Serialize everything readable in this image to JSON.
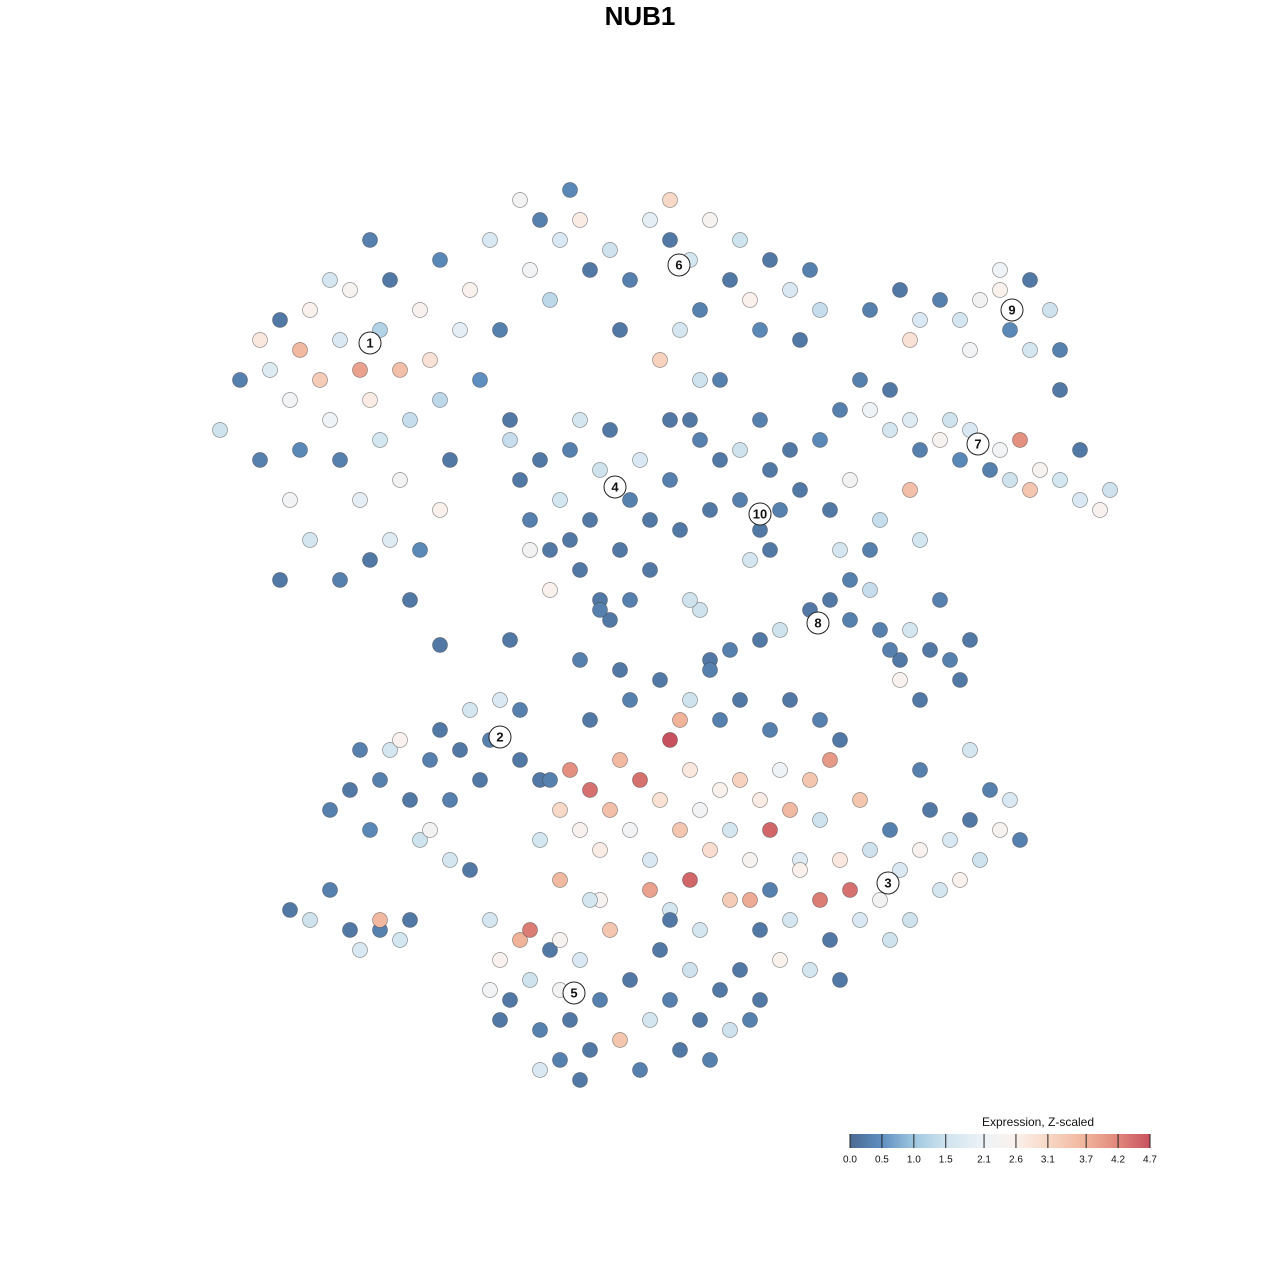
{
  "chart_data": {
    "type": "scatter",
    "title": "NUB1",
    "xlim": [
      -45,
      50
    ],
    "ylim": [
      -45,
      47
    ],
    "x": [
      -42,
      -40,
      -38,
      -37,
      -36,
      -35,
      -34,
      -34,
      -33,
      -32,
      -31,
      -30,
      -30,
      -29,
      -28,
      -28,
      -27,
      -26,
      -26,
      -25,
      -24,
      -24,
      -23,
      -22,
      -21,
      -20,
      -20,
      -19,
      -18,
      -17,
      -16,
      -15,
      -14,
      -13,
      -33,
      -30,
      -27,
      -25,
      -22,
      -35,
      -38,
      -31,
      -27,
      -20,
      -36,
      -23,
      -12,
      -10,
      -8,
      -6,
      -5,
      -3,
      -1,
      1,
      3,
      3,
      5,
      6,
      7,
      9,
      10,
      11,
      12,
      13,
      15,
      16,
      17,
      18,
      -9,
      -2,
      2,
      4,
      8,
      -11,
      -7,
      6,
      5,
      23,
      26,
      28,
      30,
      32,
      34,
      36,
      37,
      39,
      41,
      42,
      39,
      27,
      33,
      42,
      36,
      22,
      23,
      25,
      25,
      27,
      28,
      30,
      31,
      32,
      33,
      35,
      36,
      37,
      38,
      39,
      40,
      42,
      44,
      46,
      47,
      44,
      20,
      21,
      24,
      27,
      28,
      23,
      -12,
      -11,
      -10,
      -9,
      -8,
      -7,
      -6,
      -5,
      -4,
      -3,
      -2,
      -1,
      0,
      1,
      1,
      3,
      3,
      -9,
      -4,
      -1,
      -6,
      4,
      -13,
      -11,
      -7,
      6,
      8,
      10,
      12,
      13,
      15,
      10,
      12,
      14,
      11,
      13,
      16,
      18,
      7,
      19,
      20,
      21,
      19,
      21,
      17,
      14,
      12,
      9,
      7,
      23,
      24,
      26,
      27,
      29,
      31,
      32,
      30,
      26,
      28,
      25,
      33,
      6,
      -20,
      -13,
      -6,
      -3,
      5,
      -4,
      -31,
      -29,
      -27,
      -26,
      -25,
      -23,
      -22,
      -21,
      -20,
      -19,
      -18,
      -17,
      -16,
      -15,
      -14,
      -12,
      -12,
      -10,
      -24,
      -21,
      -19,
      -17,
      -28,
      -35,
      -33,
      -31,
      -29,
      -28,
      -26,
      -24,
      -26,
      -23,
      -9,
      -8,
      -7,
      -6,
      -5,
      -4,
      -3,
      -2,
      -1,
      0,
      1,
      2,
      3,
      4,
      5,
      5,
      6,
      7,
      8,
      9,
      10,
      11,
      12,
      13,
      14,
      15,
      16,
      17,
      18,
      19,
      -5,
      -1,
      2,
      5,
      8,
      10,
      13,
      15,
      18,
      20,
      4,
      -8,
      -10,
      1,
      9,
      -4,
      3,
      -2,
      7,
      13,
      15,
      16,
      18,
      19,
      20,
      21,
      22,
      23,
      24,
      25,
      26,
      27,
      28,
      29,
      30,
      31,
      32,
      33,
      34,
      35,
      36,
      37,
      38,
      14,
      17,
      12,
      25,
      20,
      11,
      33,
      28,
      22,
      -15,
      -14,
      -13,
      -12,
      -11,
      -10,
      -9,
      -8,
      -8,
      -7,
      -6,
      -5,
      -4,
      -3,
      -2,
      -1,
      0,
      1,
      2,
      3,
      4,
      5,
      6,
      7,
      8,
      9,
      10,
      11,
      12,
      -11,
      -8,
      -5,
      -14,
      -10,
      -6,
      3,
      6,
      -15
    ],
    "y": [
      21,
      26,
      30,
      27,
      32,
      24,
      19,
      29,
      33,
      26,
      22,
      30,
      18,
      35,
      27,
      14,
      24,
      31,
      20,
      36,
      27,
      16,
      22,
      33,
      28,
      24,
      38,
      18,
      31,
      35,
      26,
      40,
      31,
      22,
      10,
      6,
      8,
      10,
      9,
      14,
      18,
      36,
      40,
      13,
      6,
      4,
      44,
      42,
      40,
      42,
      37,
      39,
      36,
      42,
      40,
      44,
      38,
      33,
      42,
      36,
      40,
      34,
      31,
      38,
      35,
      30,
      37,
      33,
      34,
      31,
      28,
      31,
      26,
      37,
      45,
      26,
      22,
      33,
      35,
      32,
      34,
      32,
      34,
      35,
      31,
      36,
      33,
      29,
      29,
      30,
      29,
      25,
      37,
      26,
      23,
      21,
      25,
      22,
      19,
      20,
      22,
      18,
      21,
      17,
      19,
      16,
      20,
      15,
      17,
      16,
      14,
      13,
      15,
      19,
      23,
      16,
      12,
      15,
      10,
      9,
      16,
      12,
      18,
      9,
      14,
      19,
      7,
      12,
      17,
      21,
      9,
      14,
      18,
      7,
      12,
      16,
      22,
      5,
      4,
      4,
      22,
      11,
      20,
      9,
      10,
      20,
      18,
      19,
      22,
      17,
      19,
      14,
      11,
      13,
      8,
      9,
      15,
      20,
      13,
      13,
      9,
      6,
      4,
      2,
      3,
      1,
      0,
      -1,
      -2,
      5,
      1,
      -2,
      1,
      -1,
      -2,
      -4,
      4,
      -4,
      -6,
      -1,
      0,
      3,
      -0.5,
      0,
      -2,
      2,
      4,
      3,
      -17,
      -15,
      -19,
      -14,
      -11,
      -16,
      -20,
      -12,
      -9,
      -16,
      -11,
      -7,
      -14,
      -10,
      -6,
      -12,
      -7,
      -14,
      -10,
      -19,
      -22,
      -23,
      -11,
      -27,
      -28,
      -25,
      -29,
      -31,
      -29,
      -30,
      -28,
      -28,
      -14,
      -17,
      -13,
      -19,
      -15,
      -21,
      -17,
      -12,
      -19,
      -14,
      -22,
      -16,
      -10,
      -19,
      -13,
      -24,
      -17,
      -21,
      -15,
      -19,
      -14,
      -22,
      -16,
      -19,
      -13,
      -17,
      -22,
      -14,
      -18,
      -12,
      -8,
      -6,
      -4,
      -6,
      -8,
      -6,
      -9,
      -6,
      -8,
      -10,
      -8,
      -24,
      -20,
      -25,
      -26,
      -26,
      -27,
      -3,
      -3,
      -25,
      -28,
      -23,
      -26,
      -30,
      -22,
      -25,
      -28,
      -21,
      -26,
      -19,
      -23,
      -28,
      -21,
      -17,
      -25,
      -20,
      -24,
      -18,
      -22,
      -15,
      -19,
      -16,
      -20,
      -32,
      -33,
      -29,
      -30,
      -34,
      -26,
      -11,
      -13,
      -16,
      -28,
      -32,
      -36,
      -30,
      -34,
      -39,
      -31,
      -35,
      -42,
      -38,
      -32,
      -41,
      -36,
      -29,
      -40,
      -34,
      -43,
      -38,
      -31,
      -36,
      -41,
      -33,
      -38,
      -42,
      -35,
      -39,
      -33,
      -38,
      -36,
      -29,
      -30,
      -26,
      -38,
      -43,
      -44,
      -28,
      -29,
      -35
    ],
    "values": [
      1.5,
      0.3,
      2.8,
      1.8,
      0.2,
      2.2,
      0.4,
      3.6,
      2.6,
      3.3,
      2.1,
      1.7,
      0.3,
      2.4,
      3.9,
      1.9,
      2.7,
      1.2,
      1.6,
      0.2,
      3.5,
      2.3,
      1.4,
      2.5,
      2.9,
      1.3,
      0.4,
      0.2,
      1.9,
      2.6,
      0.5,
      1.7,
      0.3,
      0.2,
      1.6,
      0.3,
      0.2,
      1.8,
      0.4,
      2.2,
      0.3,
      1.6,
      0.3,
      2.6,
      0.2,
      0.2,
      2.3,
      0.3,
      1.7,
      2.7,
      0.2,
      1.5,
      0.3,
      1.9,
      0.2,
      3.1,
      1.6,
      0.3,
      2.4,
      0.2,
      1.5,
      2.6,
      0.4,
      0.2,
      1.7,
      0.2,
      0.3,
      1.4,
      1.3,
      0.2,
      3.2,
      1.6,
      0.3,
      2.2,
      0.4,
      1.5,
      0.2,
      0.3,
      0.2,
      1.7,
      0.3,
      1.6,
      2.3,
      2.6,
      0.4,
      0.2,
      1.5,
      0.3,
      1.6,
      2.9,
      2.2,
      0.2,
      2.1,
      0.3,
      2.1,
      1.6,
      0.2,
      1.8,
      0.3,
      2.4,
      1.5,
      0.4,
      1.7,
      0.3,
      2.2,
      1.5,
      4.1,
      3.4,
      2.4,
      1.6,
      1.7,
      2.5,
      1.5,
      0.2,
      0.3,
      2.3,
      1.4,
      3.5,
      1.6,
      0.3,
      0.2,
      0.3,
      0.2,
      0.2,
      1.6,
      0.3,
      0.2,
      0.2,
      1.5,
      0.2,
      0.2,
      0.3,
      1.7,
      0.2,
      0.2,
      0.3,
      0.2,
      2.6,
      0.2,
      0.3,
      1.6,
      0.2,
      1.4,
      2.3,
      0.2,
      0.3,
      0.2,
      1.5,
      0.3,
      0.2,
      0.2,
      0.3,
      0.2,
      0.3,
      1.6,
      0.2,
      0.2,
      0.4,
      0.2,
      0.2,
      1.6,
      0.3,
      0.2,
      0.3,
      0.2,
      1.5,
      0.2,
      0.3,
      0.2,
      1.4,
      0.3,
      0.2,
      1.6,
      0.2,
      0.3,
      0.2,
      0.3,
      2.5,
      0.2,
      0.3,
      0.2,
      1.5,
      0.2,
      0.2,
      0.3,
      0.2,
      1.5,
      0.3,
      0.3,
      0.2,
      0.4,
      0.3,
      1.6,
      0.2,
      1.5,
      0.3,
      0.2,
      0.3,
      0.2,
      1.6,
      0.2,
      0.3,
      1.7,
      0.2,
      0.3,
      0.2,
      2.5,
      2.3,
      1.6,
      0.2,
      0.3,
      0.2,
      1.5,
      0.3,
      0.2,
      1.7,
      0.3,
      1.6,
      3.6,
      0.2,
      0.3,
      3.1,
      4.1,
      2.5,
      4.4,
      2.7,
      3.5,
      3.6,
      2.2,
      4.4,
      1.7,
      2.9,
      4.7,
      3.4,
      2.8,
      4.5,
      2.2,
      3.0,
      2.6,
      1.6,
      3.2,
      2.4,
      2.7,
      4.5,
      2.1,
      3.6,
      1.8,
      3.4,
      1.5,
      4.0,
      0.2,
      0.3,
      0.2,
      1.5,
      0.3,
      0.2,
      0.3,
      0.2,
      0.3,
      0.2,
      3.7,
      3.6,
      1.6,
      3.9,
      3.3,
      2.4,
      1.6,
      0.2,
      0.3,
      0.3,
      1.6,
      2.6,
      4.3,
      0.2,
      2.8,
      4.4,
      1.7,
      1.5,
      2.3,
      0.3,
      1.7,
      1.5,
      2.5,
      0.2,
      1.6,
      1.7,
      2.6,
      0.2,
      1.5,
      0.3,
      2.4,
      1.7,
      0.3,
      2.6,
      1.6,
      0.2,
      1.5,
      0.2,
      3.8,
      1.6,
      0.3,
      3.4,
      1.6,
      2.5,
      0.2,
      3.7,
      1.5,
      0.3,
      0.2,
      2.3,
      0.3,
      0.2,
      1.7,
      0.2,
      0.3,
      3.4,
      3.4,
      0.2,
      0.3,
      1.6,
      0.2,
      0.3,
      0.2,
      1.5,
      0.2,
      0.3,
      0.2,
      1.5,
      0.2,
      0.3,
      0.2,
      4.3,
      2.4,
      1.6,
      0.2,
      1.7,
      0.2,
      0.2,
      1.6,
      2.2
    ],
    "clusters": [
      {
        "label": "1",
        "x": -27,
        "y": 29.7
      },
      {
        "label": "2",
        "x": -14,
        "y": -9.7
      },
      {
        "label": "3",
        "x": 24.8,
        "y": -24.3
      },
      {
        "label": "4",
        "x": -2.5,
        "y": 15.3
      },
      {
        "label": "5",
        "x": -6.6,
        "y": -35.3
      },
      {
        "label": "6",
        "x": 3.9,
        "y": 37.5
      },
      {
        "label": "7",
        "x": 33.8,
        "y": 19.6
      },
      {
        "label": "8",
        "x": 17.8,
        "y": 1.7
      },
      {
        "label": "9",
        "x": 37.2,
        "y": 33
      },
      {
        "label": "10",
        "x": 12,
        "y": 12.6
      }
    ],
    "colorbar": {
      "title": "Expression, Z-scaled",
      "lim": [
        0,
        4.7
      ],
      "ticks": [
        {
          "value": 0,
          "label": "0.0"
        },
        0.5,
        {
          "value": 1,
          "label": "1.0"
        },
        1.5,
        2.1,
        2.6,
        3.1,
        3.7,
        4.2,
        4.7
      ],
      "colors": [
        "#4a6a93",
        "#5e8fc0",
        "#9fc7e0",
        "#cfe3ef",
        "#eef3f7",
        "#fbf1ec",
        "#f8d8c6",
        "#f0b39a",
        "#e0877b",
        "#c8515f"
      ]
    }
  }
}
